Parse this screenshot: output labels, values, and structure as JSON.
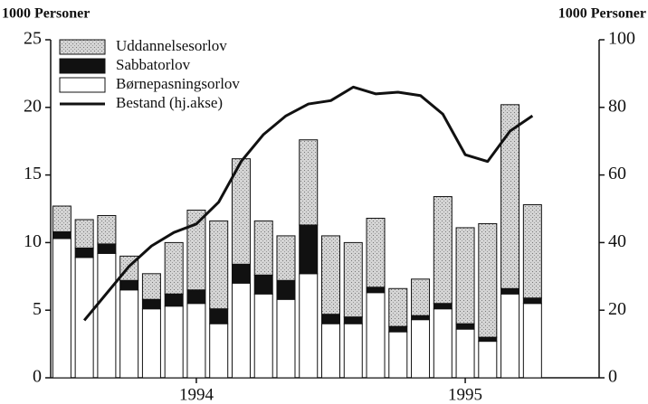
{
  "chart_data": {
    "type": "bar",
    "stacked": true,
    "y_axis_title": "1000 Personer",
    "y2_axis_title": "1000 Personer",
    "categories": [
      null,
      null,
      null,
      null,
      null,
      null,
      "1994",
      null,
      null,
      null,
      null,
      null,
      null,
      null,
      null,
      null,
      null,
      null,
      "1995",
      null,
      null,
      null
    ],
    "series": [
      {
        "name": "Uddannelsesorlov",
        "color": "#c4c4c4",
        "values": [
          1.9,
          2.1,
          2.1,
          1.8,
          1.9,
          3.8,
          5.9,
          6.5,
          7.8,
          4.0,
          3.3,
          6.3,
          5.8,
          5.5,
          5.1,
          2.8,
          2.7,
          7.9,
          7.1,
          8.4,
          13.6,
          6.9
        ]
      },
      {
        "name": "Sabbatorlov",
        "color": "#111111",
        "values": [
          0.5,
          0.7,
          0.7,
          0.7,
          0.7,
          0.9,
          1.0,
          1.1,
          1.4,
          1.4,
          1.4,
          3.6,
          0.7,
          0.5,
          0.4,
          0.4,
          0.3,
          0.4,
          0.4,
          0.3,
          0.4,
          0.4
        ]
      },
      {
        "name": "Børnepasningsorlov",
        "color": "#ffffff",
        "values": [
          10.3,
          8.9,
          9.2,
          6.5,
          5.1,
          5.3,
          5.5,
          4.0,
          7.0,
          6.2,
          5.8,
          7.7,
          4.0,
          4.0,
          6.3,
          3.4,
          4.3,
          5.1,
          3.6,
          2.7,
          6.2,
          5.5
        ]
      },
      {
        "name": "Bestand (hj.akse)",
        "type": "line",
        "axis": "y2",
        "color": "#111111",
        "values": [
          null,
          17,
          25,
          33,
          39,
          43,
          45.5,
          52,
          64,
          72,
          77.5,
          81,
          82,
          86,
          84,
          84.5,
          83.5,
          78,
          66,
          64,
          73,
          77.5
        ]
      }
    ],
    "ylim": [
      0,
      25
    ],
    "yticks": [
      0,
      5,
      10,
      15,
      20,
      25
    ],
    "y2lim": [
      0,
      100
    ],
    "y2ticks": [
      0,
      20,
      40,
      60,
      80,
      100
    ],
    "legend": "top-left"
  }
}
